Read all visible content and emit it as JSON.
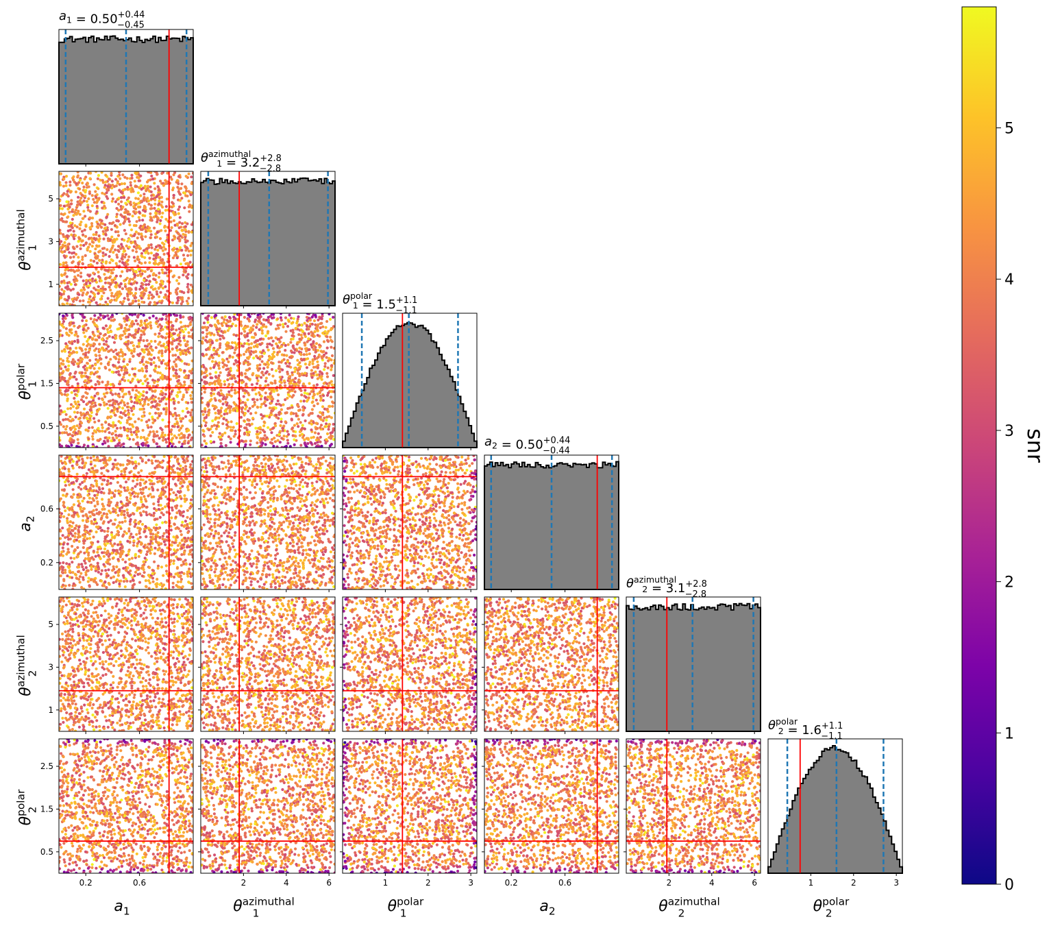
{
  "chart_data": {
    "type": "corner",
    "parameters": [
      {
        "symbol": "a",
        "sub": "1",
        "sup": "",
        "range": [
          0.0,
          1.0
        ],
        "ticks": [
          "0.2",
          "0.6"
        ],
        "tick_values": [
          0.2,
          0.6
        ],
        "truth": 0.82,
        "title": {
          "median": "0.50",
          "plus": "+0.44",
          "minus": "−0.45"
        },
        "quantiles": [
          0.05,
          0.5,
          0.95
        ],
        "hist_shape": "uniform"
      },
      {
        "symbol": "θ",
        "sub": "1",
        "sup": "azimuthal",
        "range": [
          0.0,
          6.2832
        ],
        "ticks": [
          "1",
          "3",
          "5"
        ],
        "x_ticks": [
          "2",
          "4",
          "6"
        ],
        "tick_values": [
          1,
          3,
          5
        ],
        "x_tick_values": [
          2,
          4,
          6
        ],
        "truth": 1.8,
        "title": {
          "median": "3.2",
          "plus": "+2.8",
          "minus": "−2.8"
        },
        "quantiles": [
          0.35,
          3.2,
          5.95
        ],
        "hist_shape": "uniform"
      },
      {
        "symbol": "θ",
        "sub": "1",
        "sup": "polar",
        "range": [
          0.0,
          3.1416
        ],
        "ticks": [
          "0.5",
          "1.5",
          "2.5"
        ],
        "x_ticks": [
          "1",
          "2",
          "3"
        ],
        "tick_values": [
          0.5,
          1.5,
          2.5
        ],
        "x_tick_values": [
          1,
          2,
          3
        ],
        "truth": 1.4,
        "title": {
          "median": "1.5",
          "plus": "+1.1",
          "minus": "−1.1"
        },
        "quantiles": [
          0.45,
          1.55,
          2.7
        ],
        "hist_shape": "sine"
      },
      {
        "symbol": "a",
        "sub": "2",
        "sup": "",
        "range": [
          0.0,
          1.0
        ],
        "ticks": [
          "0.2",
          "0.6"
        ],
        "tick_values": [
          0.2,
          0.6
        ],
        "truth": 0.84,
        "title": {
          "median": "0.50",
          "plus": "+0.44",
          "minus": "−0.44"
        },
        "quantiles": [
          0.05,
          0.5,
          0.95
        ],
        "hist_shape": "uniform"
      },
      {
        "symbol": "θ",
        "sub": "2",
        "sup": "azimuthal",
        "range": [
          0.0,
          6.2832
        ],
        "ticks": [
          "1",
          "3",
          "5"
        ],
        "x_ticks": [
          "2",
          "4",
          "6"
        ],
        "tick_values": [
          1,
          3,
          5
        ],
        "x_tick_values": [
          2,
          4,
          6
        ],
        "truth": 1.9,
        "title": {
          "median": "3.1",
          "plus": "+2.8",
          "minus": "−2.8"
        },
        "quantiles": [
          0.35,
          3.1,
          5.95
        ],
        "hist_shape": "uniform"
      },
      {
        "symbol": "θ",
        "sub": "2",
        "sup": "polar",
        "range": [
          0.0,
          3.1416
        ],
        "ticks": [
          "0.5",
          "1.5",
          "2.5"
        ],
        "x_ticks": [
          "1",
          "2",
          "3"
        ],
        "tick_values": [
          0.5,
          1.5,
          2.5
        ],
        "x_tick_values": [
          1,
          2,
          3
        ],
        "truth": 0.75,
        "title": {
          "median": "1.6",
          "plus": "+1.1",
          "minus": "−1.1"
        },
        "quantiles": [
          0.45,
          1.6,
          2.7
        ],
        "hist_shape": "sine"
      }
    ],
    "histogram_fill": "#808080",
    "histogram_edge": "#000000",
    "truth_color": "#ff0000",
    "quantile_color": "#1f77b4",
    "colormap": "plasma",
    "colorbar": {
      "label": "snr",
      "range": [
        0,
        5.8
      ],
      "ticks": [
        "0",
        "1",
        "2",
        "3",
        "4",
        "5"
      ],
      "tick_values": [
        0,
        1,
        2,
        3,
        4,
        5
      ]
    }
  }
}
